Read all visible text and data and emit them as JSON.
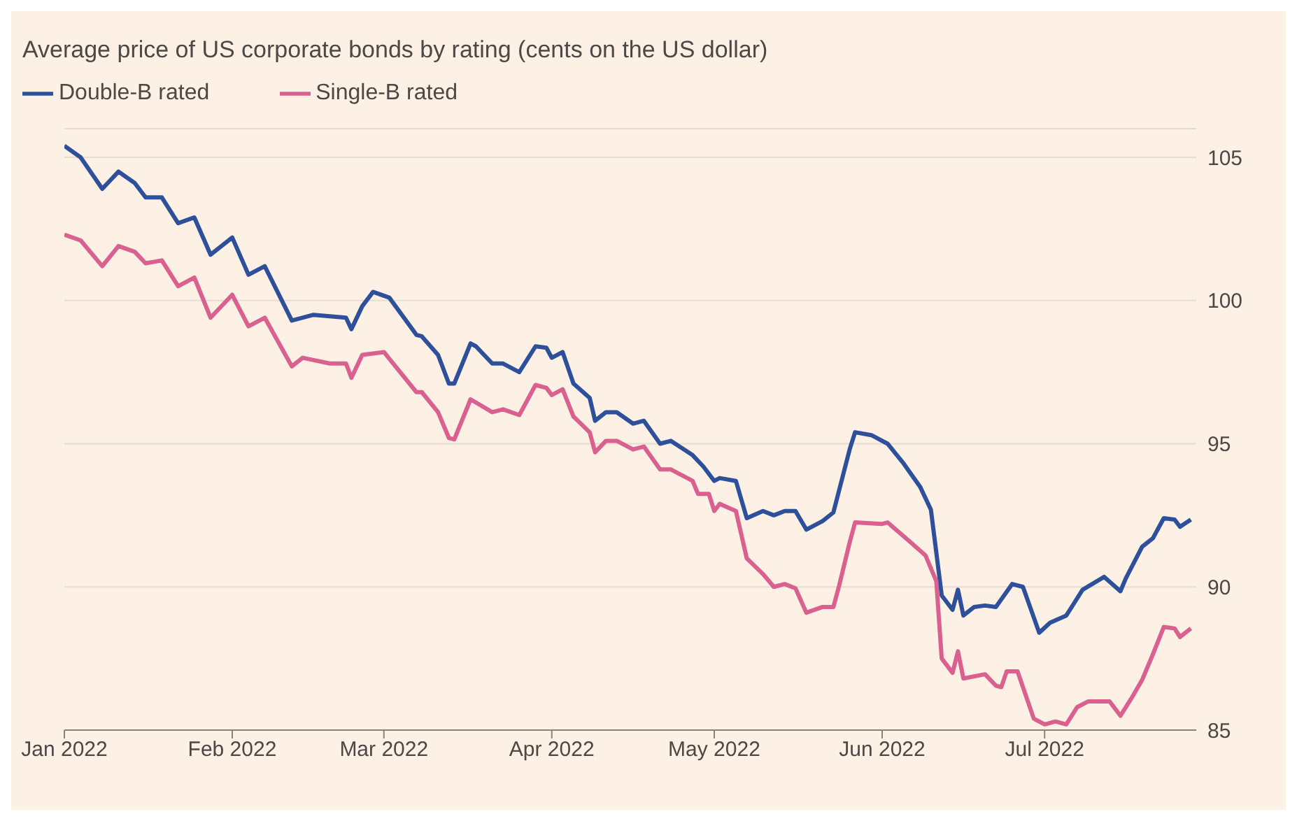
{
  "chart_data": {
    "type": "line",
    "title": "Average price of US corporate bonds by rating (cents on the US dollar)",
    "series": [
      {
        "name": "Double-B rated",
        "color": "#2e4f9a",
        "x": [
          "2022-01-01",
          "2022-01-04",
          "2022-01-08",
          "2022-01-11",
          "2022-01-14",
          "2022-01-16",
          "2022-01-19",
          "2022-01-22",
          "2022-01-25",
          "2022-01-28",
          "2022-02-01",
          "2022-02-04",
          "2022-02-07",
          "2022-02-12",
          "2022-02-16",
          "2022-02-22",
          "2022-02-23",
          "2022-02-25",
          "2022-02-27",
          "2022-03-02",
          "2022-03-07",
          "2022-03-08",
          "2022-03-11",
          "2022-03-13",
          "2022-03-14",
          "2022-03-17",
          "2022-03-18",
          "2022-03-21",
          "2022-03-23",
          "2022-03-26",
          "2022-03-29",
          "2022-03-31",
          "2022-04-01",
          "2022-04-03",
          "2022-04-05",
          "2022-04-08",
          "2022-04-09",
          "2022-04-11",
          "2022-04-13",
          "2022-04-16",
          "2022-04-18",
          "2022-04-21",
          "2022-04-23",
          "2022-04-27",
          "2022-04-29",
          "2022-05-01",
          "2022-05-02",
          "2022-05-05",
          "2022-05-07",
          "2022-05-10",
          "2022-05-12",
          "2022-05-14",
          "2022-05-16",
          "2022-05-18",
          "2022-05-21",
          "2022-05-23",
          "2022-05-26",
          "2022-05-27",
          "2022-05-30",
          "2022-06-02",
          "2022-06-05",
          "2022-06-08",
          "2022-06-10",
          "2022-06-12",
          "2022-06-14",
          "2022-06-15",
          "2022-06-16",
          "2022-06-18",
          "2022-06-20",
          "2022-06-22",
          "2022-06-25",
          "2022-06-27",
          "2022-06-30",
          "2022-07-02",
          "2022-07-05",
          "2022-07-08",
          "2022-07-12",
          "2022-07-15",
          "2022-07-16",
          "2022-07-19",
          "2022-07-21",
          "2022-07-23",
          "2022-07-25",
          "2022-07-26",
          "2022-07-28"
        ],
        "values": [
          105.4,
          105.0,
          103.9,
          104.5,
          104.1,
          103.6,
          103.6,
          102.7,
          102.9,
          101.6,
          102.2,
          100.9,
          101.2,
          99.3,
          99.5,
          99.4,
          99.0,
          99.8,
          100.3,
          100.1,
          98.8,
          98.75,
          98.1,
          97.1,
          97.1,
          98.5,
          98.4,
          97.8,
          97.8,
          97.5,
          98.4,
          98.35,
          98.0,
          98.2,
          97.1,
          96.6,
          95.8,
          96.1,
          96.1,
          95.7,
          95.8,
          95.0,
          95.1,
          94.6,
          94.2,
          93.7,
          93.8,
          93.7,
          92.4,
          92.65,
          92.5,
          92.65,
          92.65,
          92.0,
          92.3,
          92.6,
          94.8,
          95.4,
          95.3,
          95.0,
          94.3,
          93.5,
          92.7,
          89.7,
          89.2,
          89.9,
          89.0,
          89.3,
          89.35,
          89.3,
          90.1,
          90.0,
          88.4,
          88.75,
          89.0,
          89.9,
          90.35,
          89.85,
          90.3,
          91.4,
          91.7,
          92.4,
          92.35,
          92.1,
          92.35
        ]
      },
      {
        "name": "Single-B rated",
        "color": "#d9608f",
        "x": [
          "2022-01-01",
          "2022-01-04",
          "2022-01-08",
          "2022-01-11",
          "2022-01-14",
          "2022-01-16",
          "2022-01-19",
          "2022-01-22",
          "2022-01-25",
          "2022-01-28",
          "2022-02-01",
          "2022-02-04",
          "2022-02-07",
          "2022-02-12",
          "2022-02-14",
          "2022-02-19",
          "2022-02-22",
          "2022-02-23",
          "2022-02-25",
          "2022-03-01",
          "2022-03-07",
          "2022-03-08",
          "2022-03-11",
          "2022-03-13",
          "2022-03-14",
          "2022-03-17",
          "2022-03-21",
          "2022-03-23",
          "2022-03-26",
          "2022-03-29",
          "2022-03-31",
          "2022-04-01",
          "2022-04-03",
          "2022-04-05",
          "2022-04-08",
          "2022-04-09",
          "2022-04-11",
          "2022-04-13",
          "2022-04-16",
          "2022-04-18",
          "2022-04-21",
          "2022-04-23",
          "2022-04-27",
          "2022-04-28",
          "2022-04-30",
          "2022-05-01",
          "2022-05-02",
          "2022-05-05",
          "2022-05-07",
          "2022-05-10",
          "2022-05-12",
          "2022-05-14",
          "2022-05-16",
          "2022-05-18",
          "2022-05-21",
          "2022-05-23",
          "2022-05-24",
          "2022-05-26",
          "2022-05-27",
          "2022-06-01",
          "2022-06-02",
          "2022-06-06",
          "2022-06-09",
          "2022-06-11",
          "2022-06-12",
          "2022-06-14",
          "2022-06-15",
          "2022-06-16",
          "2022-06-20",
          "2022-06-22",
          "2022-06-23",
          "2022-06-24",
          "2022-06-26",
          "2022-06-29",
          "2022-07-01",
          "2022-07-03",
          "2022-07-05",
          "2022-07-07",
          "2022-07-09",
          "2022-07-13",
          "2022-07-15",
          "2022-07-17",
          "2022-07-19",
          "2022-07-21",
          "2022-07-23",
          "2022-07-25",
          "2022-07-26",
          "2022-07-28"
        ],
        "values": [
          102.3,
          102.1,
          101.2,
          101.9,
          101.7,
          101.3,
          101.4,
          100.5,
          100.8,
          99.4,
          100.2,
          99.1,
          99.4,
          97.7,
          98.0,
          97.8,
          97.8,
          97.3,
          98.1,
          98.2,
          96.8,
          96.8,
          96.1,
          95.2,
          95.15,
          96.55,
          96.1,
          96.2,
          96.0,
          97.05,
          96.95,
          96.7,
          96.9,
          95.95,
          95.4,
          94.7,
          95.1,
          95.1,
          94.8,
          94.9,
          94.1,
          94.1,
          93.7,
          93.25,
          93.25,
          92.65,
          92.9,
          92.65,
          91.0,
          90.45,
          90.0,
          90.1,
          89.95,
          89.1,
          89.3,
          89.3,
          90.0,
          91.55,
          92.25,
          92.2,
          92.25,
          91.6,
          91.1,
          90.2,
          87.5,
          87.0,
          87.75,
          86.8,
          86.95,
          86.55,
          86.5,
          87.05,
          87.05,
          85.4,
          85.2,
          85.3,
          85.2,
          85.8,
          86.0,
          86.0,
          85.5,
          86.1,
          86.75,
          87.65,
          88.6,
          88.55,
          88.25,
          88.55
        ]
      }
    ],
    "xlim": [
      "2022-01-01",
      "2022-07-29"
    ],
    "xticks": [
      {
        "value": "2022-01-01",
        "label": "Jan 2022"
      },
      {
        "value": "2022-02-01",
        "label": "Feb 2022"
      },
      {
        "value": "2022-03-01",
        "label": "Mar 2022"
      },
      {
        "value": "2022-04-01",
        "label": "Apr 2022"
      },
      {
        "value": "2022-05-01",
        "label": "May 2022"
      },
      {
        "value": "2022-06-01",
        "label": "Jun 2022"
      },
      {
        "value": "2022-07-01",
        "label": "Jul 2022"
      }
    ],
    "ylim": [
      85,
      106
    ],
    "yticks": [
      85,
      90,
      95,
      100,
      105
    ],
    "grid": "y",
    "legend": "top left",
    "marker": "none",
    "line_style": "solid"
  }
}
